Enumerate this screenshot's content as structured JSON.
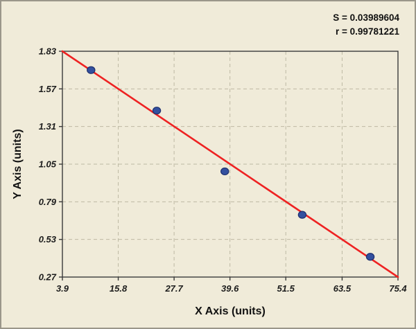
{
  "stats": {
    "s_value": "S = 0.03989604",
    "r_value": "r = 0.99781221"
  },
  "chart_data": {
    "type": "scatter",
    "title": "",
    "xlabel": "X Axis (units)",
    "ylabel": "Y Axis (units)",
    "xlim": [
      3.9,
      75.4
    ],
    "ylim": [
      0.27,
      1.83
    ],
    "x_tick_labels": [
      "3.9",
      "15.8",
      "27.7",
      "39.6",
      "51.5",
      "63.5",
      "75.4"
    ],
    "y_tick_labels": [
      "0.27",
      "0.53",
      "0.79",
      "1.05",
      "1.31",
      "1.57",
      "1.83"
    ],
    "grid": true,
    "legend": "none",
    "points": [
      {
        "x": 10.0,
        "y": 1.7
      },
      {
        "x": 24.0,
        "y": 1.42
      },
      {
        "x": 38.5,
        "y": 1.0
      },
      {
        "x": 55.0,
        "y": 0.7
      },
      {
        "x": 69.5,
        "y": 0.41
      }
    ],
    "fit_line": {
      "x1": 3.9,
      "y1": 1.83,
      "x2": 75.4,
      "y2": 0.27
    },
    "colors": {
      "background": "#f0ebd9",
      "plot_background": "#f0ebd9",
      "grid": "#bdb9a4",
      "axis": "#3a3a3a",
      "line": "#ee2222",
      "point_fill": "#33509f",
      "point_edge": "#1d2f6e"
    }
  }
}
